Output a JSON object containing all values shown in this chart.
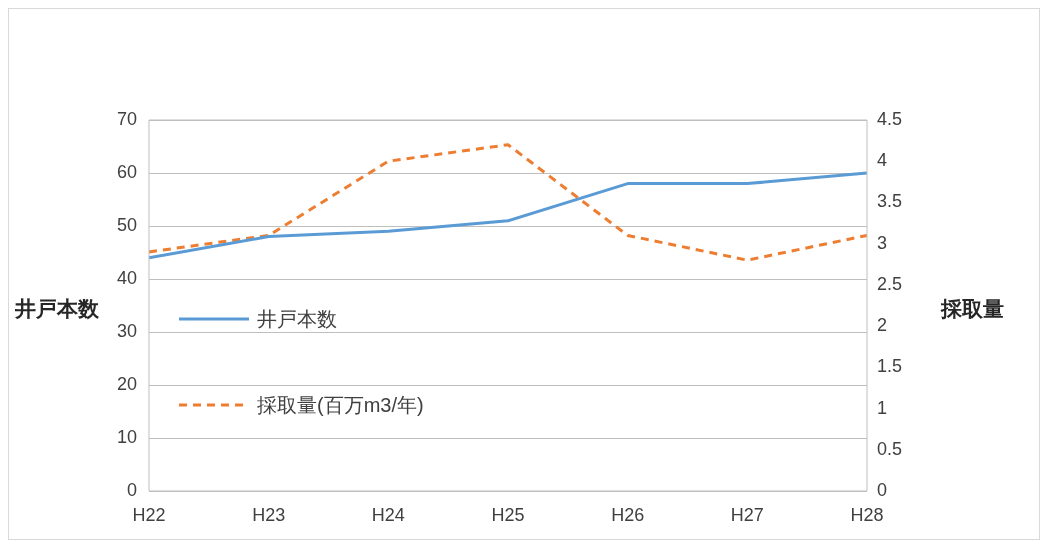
{
  "chart_data": {
    "type": "line",
    "categories": [
      "H22",
      "H23",
      "H24",
      "H25",
      "H26",
      "H27",
      "H28"
    ],
    "ylabel": "井戸本数",
    "y2label": "採取量",
    "series": [
      {
        "name": "井戸本数",
        "color": "#5b9bd5",
        "values": [
          44,
          48,
          49,
          51,
          58,
          58,
          60
        ],
        "line_style": "solid"
      },
      {
        "name": "採取量(百万m3/年)",
        "color": "#ed7d31",
        "values": [
          2.9,
          3.1,
          4.0,
          4.2,
          3.1,
          2.8,
          3.1
        ],
        "axis": "y2",
        "line_style": "dashed"
      }
    ],
    "ylim": [
      0,
      70
    ],
    "yticks": [
      0,
      10,
      20,
      30,
      40,
      50,
      60,
      70
    ],
    "y2lim": [
      0,
      4.5
    ],
    "y2ticks": [
      0,
      0.5,
      1,
      1.5,
      2,
      2.5,
      3,
      3.5,
      4,
      4.5
    ],
    "grid": "y",
    "legend": "left",
    "marker": "none"
  }
}
